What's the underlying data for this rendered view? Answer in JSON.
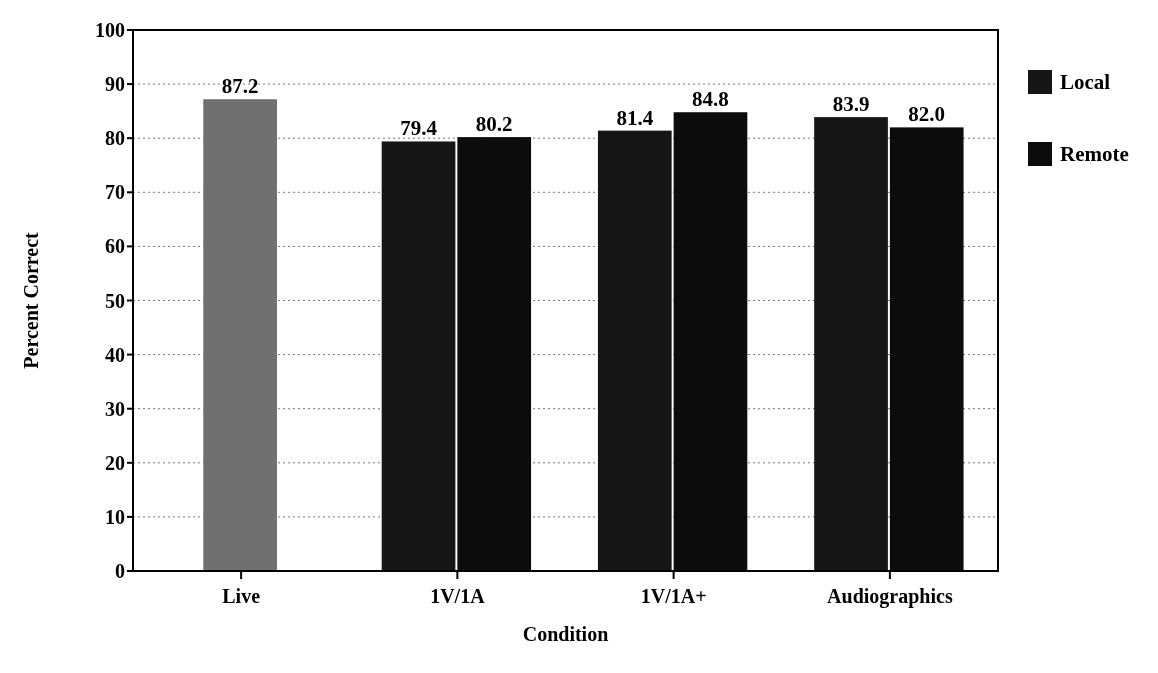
{
  "chart_data": {
    "type": "bar",
    "xlabel": "Condition",
    "ylabel": "Percent Correct",
    "categories": [
      "Live",
      "1V/1A",
      "1V/1A+",
      "Audiographics"
    ],
    "series": [
      {
        "name": "Local",
        "color": "#161616",
        "colors": [
          "#707070",
          "#161616",
          "#161616",
          "#161616"
        ],
        "values": [
          87.2,
          79.4,
          81.4,
          83.9
        ],
        "value_labels": [
          "87.2",
          "79.4",
          "81.4",
          "83.9"
        ]
      },
      {
        "name": "Remote",
        "color": "#0c0c0c",
        "values": [
          null,
          80.2,
          84.8,
          82.0
        ],
        "value_labels": [
          null,
          "80.2",
          "84.8",
          "82.0"
        ]
      }
    ],
    "ylim": [
      0,
      100
    ],
    "yticks": [
      0,
      10,
      20,
      30,
      40,
      50,
      60,
      70,
      80,
      90,
      100
    ],
    "grid": "y",
    "legend": "right"
  }
}
